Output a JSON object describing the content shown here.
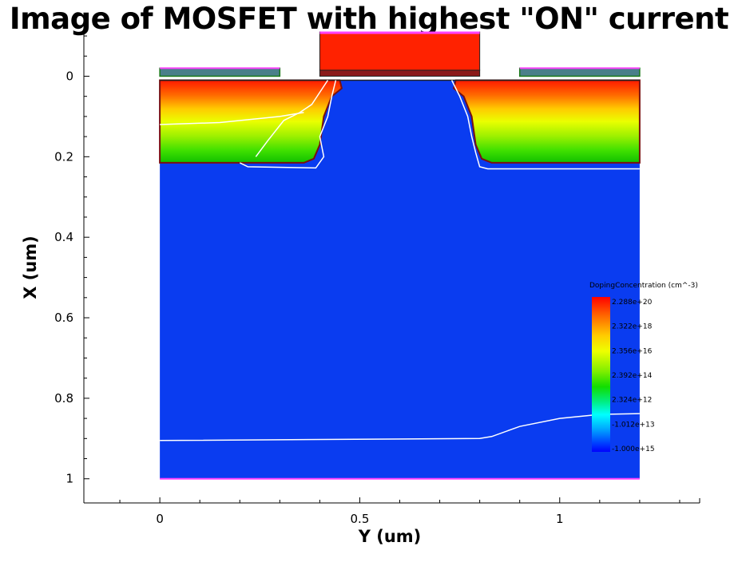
{
  "chart_data": {
    "type": "heatmap",
    "title": "Image of MOSFET with highest \"ON\" current",
    "xlabel": "Y (um)",
    "ylabel": "X (um)",
    "xlim": [
      -0.19,
      1.35
    ],
    "ylim": [
      -0.11,
      1.06
    ],
    "y_inverted": true,
    "x_ticks": [
      {
        "v": 0,
        "label": "0"
      },
      {
        "v": 0.5,
        "label": "0.5"
      },
      {
        "v": 1,
        "label": "1"
      }
    ],
    "y_ticks": [
      {
        "v": 0,
        "label": "0"
      },
      {
        "v": 0.2,
        "label": "0.2"
      },
      {
        "v": 0.4,
        "label": "0.4"
      },
      {
        "v": 0.6,
        "label": "0.6"
      },
      {
        "v": 0.8,
        "label": "0.8"
      },
      {
        "v": 1,
        "label": "1"
      }
    ],
    "substrate": {
      "x0": 0,
      "x1": 1.2,
      "y0": 0.01,
      "y1": 1.0,
      "color": "#0a3cf0"
    },
    "source_region": {
      "x0": 0,
      "x1": 0.46,
      "y0": 0.01,
      "y1": 0.215
    },
    "drain_region": {
      "x0": 0.73,
      "x1": 1.2,
      "y0": 0.01,
      "y1": 0.215
    },
    "gate": {
      "x0": 0.4,
      "x1": 0.8,
      "y0": -0.11,
      "y1": -0.015,
      "color": "#ff2200"
    },
    "gate_oxide": {
      "x0": 0.4,
      "x1": 0.8,
      "y0": -0.015,
      "y1": 0.0,
      "color": "#8b1a1a"
    },
    "contacts": [
      {
        "x0": 0,
        "x1": 0.3,
        "y0": -0.02,
        "y1": 0.0,
        "color": "#4a7f8a"
      },
      {
        "x0": 0.9,
        "x1": 1.2,
        "y0": -0.02,
        "y1": 0.0,
        "color": "#4a7f8a"
      }
    ],
    "legend": {
      "title": "DopingConcentration (cm^-3)",
      "placement": "right",
      "entries": [
        "2.288e+20",
        "2.322e+18",
        "2.356e+16",
        "2.392e+14",
        "2.324e+12",
        "-1.012e+13",
        "-1.000e+15"
      ]
    },
    "contour_lines": [
      {
        "name": "bottom-junction",
        "points": [
          [
            0,
            0.905
          ],
          [
            0.8,
            0.9
          ],
          [
            0.83,
            0.895
          ],
          [
            0.9,
            0.87
          ],
          [
            1.0,
            0.85
          ],
          [
            1.1,
            0.84
          ],
          [
            1.2,
            0.838
          ]
        ]
      },
      {
        "name": "source-inner",
        "points": [
          [
            0,
            0.12
          ],
          [
            0.15,
            0.115
          ],
          [
            0.3,
            0.1
          ],
          [
            0.36,
            0.09
          ]
        ]
      },
      {
        "name": "source-diag",
        "points": [
          [
            0.24,
            0.2
          ],
          [
            0.27,
            0.16
          ],
          [
            0.31,
            0.11
          ],
          [
            0.35,
            0.09
          ],
          [
            0.38,
            0.07
          ],
          [
            0.4,
            0.04
          ],
          [
            0.42,
            0.01
          ]
        ]
      },
      {
        "name": "source-edge",
        "points": [
          [
            0.2,
            0.215
          ],
          [
            0.22,
            0.225
          ],
          [
            0.39,
            0.228
          ],
          [
            0.41,
            0.2
          ],
          [
            0.4,
            0.15
          ],
          [
            0.42,
            0.1
          ],
          [
            0.43,
            0.05
          ],
          [
            0.44,
            0.01
          ]
        ]
      },
      {
        "name": "drain-edge",
        "points": [
          [
            0.73,
            0.01
          ],
          [
            0.75,
            0.05
          ],
          [
            0.77,
            0.1
          ],
          [
            0.78,
            0.15
          ],
          [
            0.79,
            0.19
          ],
          [
            0.8,
            0.225
          ],
          [
            0.82,
            0.23
          ],
          [
            1.2,
            0.23
          ]
        ]
      }
    ]
  }
}
